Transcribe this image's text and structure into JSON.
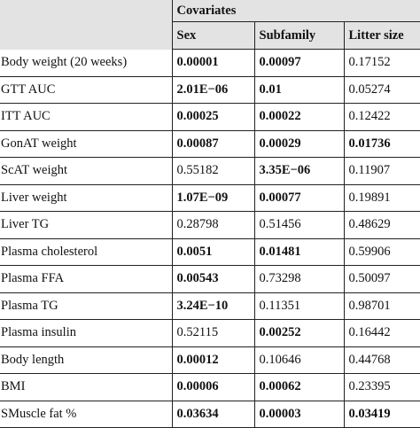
{
  "table": {
    "group_header": "Covariates",
    "columns": [
      "Sex",
      "Subfamily",
      "Litter size"
    ],
    "rows": [
      {
        "label": "Body weight (20 weeks)",
        "values": [
          "0.00001",
          "0.00097",
          "0.17152"
        ],
        "bold": [
          true,
          true,
          false
        ]
      },
      {
        "label": "GTT AUC",
        "values": [
          "2.01E−06",
          "0.01",
          "0.05274"
        ],
        "bold": [
          true,
          true,
          false
        ]
      },
      {
        "label": "ITT AUC",
        "values": [
          "0.00025",
          "0.00022",
          "0.12422"
        ],
        "bold": [
          true,
          true,
          false
        ]
      },
      {
        "label": "GonAT weight",
        "values": [
          "0.00087",
          "0.00029",
          "0.01736"
        ],
        "bold": [
          true,
          true,
          true
        ]
      },
      {
        "label": "ScAT weight",
        "values": [
          "0.55182",
          "3.35E−06",
          "0.11907"
        ],
        "bold": [
          false,
          true,
          false
        ]
      },
      {
        "label": "Liver weight",
        "values": [
          "1.07E−09",
          "0.00077",
          "0.19891"
        ],
        "bold": [
          true,
          true,
          false
        ]
      },
      {
        "label": "Liver TG",
        "values": [
          "0.28798",
          "0.51456",
          "0.48629"
        ],
        "bold": [
          false,
          false,
          false
        ]
      },
      {
        "label": "Plasma cholesterol",
        "values": [
          "0.0051",
          "0.01481",
          "0.59906"
        ],
        "bold": [
          true,
          true,
          false
        ]
      },
      {
        "label": "Plasma FFA",
        "values": [
          "0.00543",
          "0.73298",
          "0.50097"
        ],
        "bold": [
          true,
          false,
          false
        ]
      },
      {
        "label": "Plasma TG",
        "values": [
          "3.24E−10",
          "0.11351",
          "0.98701"
        ],
        "bold": [
          true,
          false,
          false
        ]
      },
      {
        "label": "Plasma insulin",
        "values": [
          "0.52115",
          "0.00252",
          "0.16442"
        ],
        "bold": [
          false,
          true,
          false
        ]
      },
      {
        "label": "Body length",
        "values": [
          "0.00012",
          "0.10646",
          "0.44768"
        ],
        "bold": [
          true,
          false,
          false
        ]
      },
      {
        "label": "BMI",
        "values": [
          "0.00006",
          "0.00062",
          "0.23395"
        ],
        "bold": [
          true,
          true,
          false
        ]
      },
      {
        "label": "SMuscle fat %",
        "values": [
          "0.03634",
          "0.00003",
          "0.03419"
        ],
        "bold": [
          true,
          true,
          true
        ]
      }
    ]
  },
  "colors": {
    "header_bg": "#e3e3e3",
    "rule": "#222222",
    "text": "#111111"
  }
}
